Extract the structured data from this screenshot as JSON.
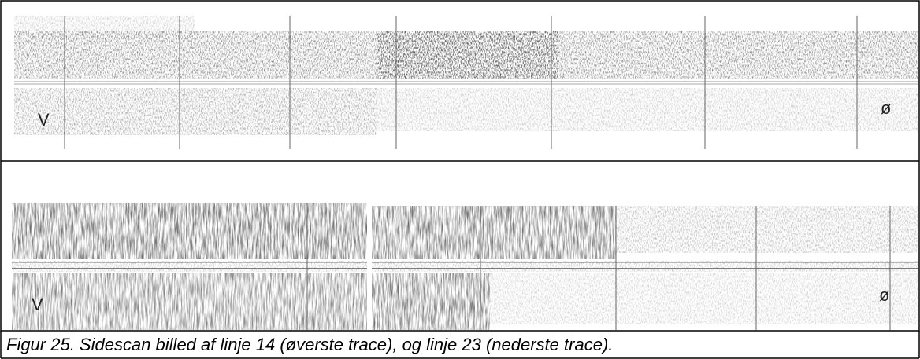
{
  "figure": {
    "top_image": {
      "left_label": "V",
      "right_label": "ø"
    },
    "bottom_image": {
      "left_label": "V",
      "right_label": "ø"
    },
    "caption": "Figur 25. Sidescan billed af linje 14 (øverste trace), og linje 23 (nederste trace)."
  }
}
